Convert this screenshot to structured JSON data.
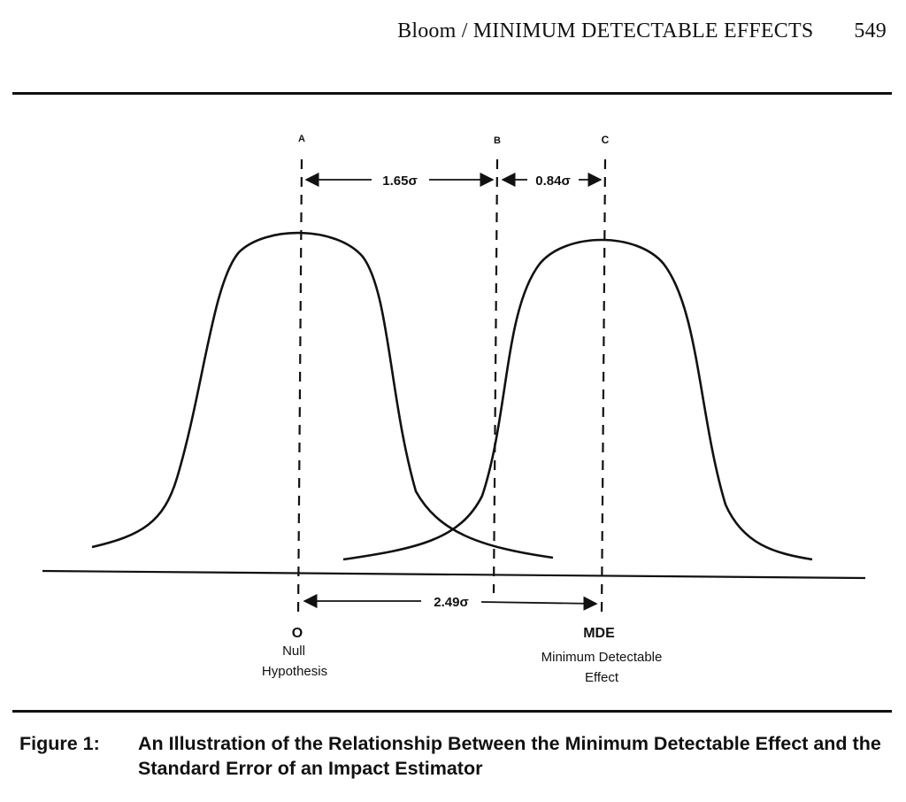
{
  "header": {
    "running_title": "Bloom / MINIMUM DETECTABLE EFFECTS",
    "page_number": "549"
  },
  "figure": {
    "markers": {
      "a": "A",
      "b": "B",
      "c": "C"
    },
    "distances": {
      "a_to_b": "1.65σ",
      "b_to_c": "0.84σ",
      "zero_to_mde": "2.49σ"
    },
    "axis_labels": {
      "zero": "O",
      "zero_caption_line1": "Null",
      "zero_caption_line2": "Hypothesis",
      "mde": "MDE",
      "mde_caption_line1": "Minimum Detectable",
      "mde_caption_line2": "Effect"
    }
  },
  "caption": {
    "label": "Figure 1:",
    "text": "An Illustration of the Relationship Between the Minimum Detectable Effect and the Standard Error of an Impact Estimator"
  }
}
